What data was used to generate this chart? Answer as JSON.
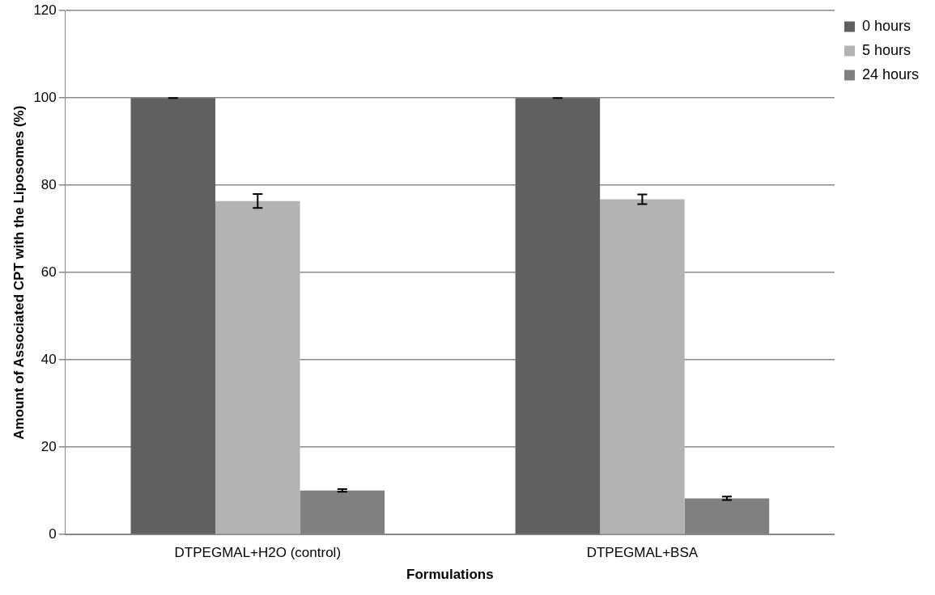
{
  "chart_data": {
    "type": "bar",
    "xlabel": "Formulations",
    "ylabel": "Amount of Associated CPT with the Liposomes (%)",
    "categories": [
      "DTPEGMAL+H2O (control)",
      "DTPEGMAL+BSA"
    ],
    "series": [
      {
        "name": "0 hours",
        "color": "#606060",
        "values": [
          100,
          100
        ],
        "errors": [
          0,
          0
        ]
      },
      {
        "name": "5 hours",
        "color": "#b3b3b3",
        "values": [
          76.4,
          76.8
        ],
        "errors": [
          1.6,
          1.1
        ]
      },
      {
        "name": "24 hours",
        "color": "#808080",
        "values": [
          10.1,
          8.3
        ],
        "errors": [
          0.3,
          0.4
        ]
      }
    ],
    "ylim": [
      0,
      120
    ],
    "yticks": [
      0,
      20,
      40,
      60,
      80,
      100,
      120
    ],
    "grid": "y",
    "legend": "right"
  }
}
